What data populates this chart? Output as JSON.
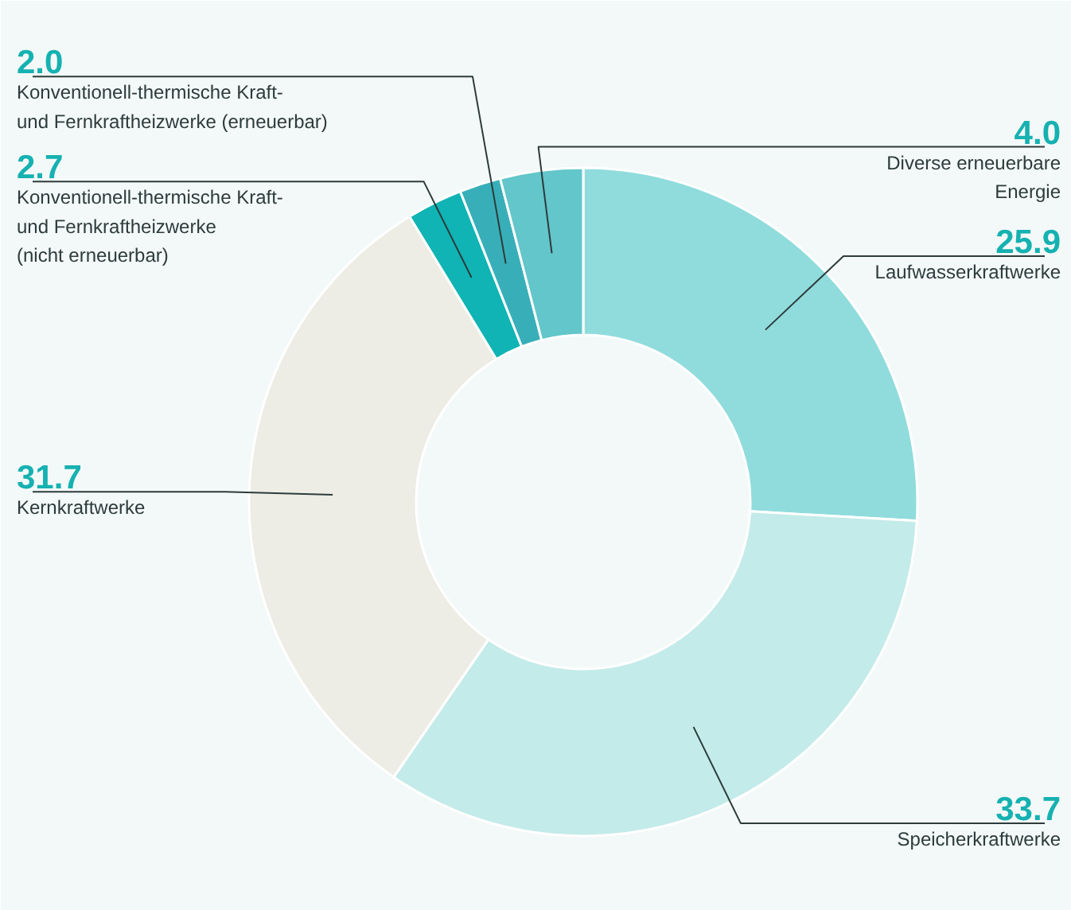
{
  "chart_data": {
    "type": "donut",
    "categories": [
      "Laufwasserkraftwerke",
      "Speicherkraftwerke",
      "Kernkraftwerke",
      "Konventionell-thermische Kraft-\nund Fernkraftheizwerke\n(nicht erneuerbar)",
      "Konventionell-thermische Kraft-\nund Fernkraftheizwerke (erneuerbar)",
      "Diverse erneuerbare\nEnergie"
    ],
    "values": [
      25.9,
      33.7,
      31.7,
      2.7,
      2.0,
      4.0
    ],
    "value_labels": [
      "25.9",
      "33.7",
      "31.7",
      "2.7",
      "2.0",
      "4.0"
    ],
    "colors": [
      "#90dcdd",
      "#c3ebe9",
      "#ededE5",
      "#10b4b4",
      "#38afb8",
      "#62c6ca"
    ]
  }
}
